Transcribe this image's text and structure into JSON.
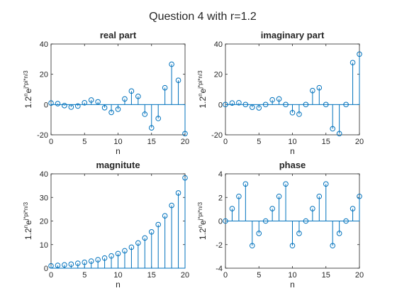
{
  "figure": {
    "suptitle": "Question 4 with r=1.2"
  },
  "colors": {
    "stem": "#0072BD",
    "axes": "#262626"
  },
  "chart_data": [
    {
      "type": "stem",
      "title": "real part",
      "xlabel": "n",
      "ylabel": {
        "base": "1.2",
        "sup1": "n",
        "mid": "e",
        "sup2": "j*pi*n/3"
      },
      "xlim": [
        0,
        20
      ],
      "ylim": [
        -20,
        40
      ],
      "xticks": [
        0,
        5,
        10,
        15,
        20
      ],
      "yticks": [
        -20,
        0,
        20,
        40
      ],
      "x": [
        0,
        1,
        2,
        3,
        4,
        5,
        6,
        7,
        8,
        9,
        10,
        11,
        12,
        13,
        14,
        15,
        16,
        17,
        18,
        19,
        20
      ],
      "values": [
        1,
        0.6,
        -0.7,
        -1.7,
        -1.0,
        1.2,
        3.0,
        1.8,
        -2.1,
        -5.2,
        -3.1,
        3.7,
        8.9,
        5.4,
        -6.4,
        -15.4,
        -9.2,
        11.1,
        26.6,
        16.0,
        -19.2
      ]
    },
    {
      "type": "stem",
      "title": "imaginary part",
      "xlabel": "n",
      "ylabel": {
        "base": "1.2",
        "sup1": "n",
        "mid": "e",
        "sup2": "j*pi*n/3"
      },
      "xlim": [
        0,
        20
      ],
      "ylim": [
        -20,
        40
      ],
      "xticks": [
        0,
        5,
        10,
        15,
        20
      ],
      "yticks": [
        -20,
        0,
        20,
        40
      ],
      "x": [
        0,
        1,
        2,
        3,
        4,
        5,
        6,
        7,
        8,
        9,
        10,
        11,
        12,
        13,
        14,
        15,
        16,
        17,
        18,
        19,
        20
      ],
      "values": [
        0,
        1.0,
        1.2,
        0,
        -1.8,
        -2.2,
        0,
        3.1,
        3.7,
        0,
        -5.4,
        -6.4,
        0,
        9.2,
        11.1,
        0,
        -16.0,
        -19.2,
        0,
        27.7,
        33.3
      ]
    },
    {
      "type": "stem",
      "title": "magnitute",
      "xlabel": "n",
      "ylabel": {
        "base": "1.2",
        "sup1": "n",
        "mid": "e",
        "sup2": "j*pi*n/3"
      },
      "xlim": [
        0,
        20
      ],
      "ylim": [
        0,
        40
      ],
      "xticks": [
        0,
        5,
        10,
        15,
        20
      ],
      "yticks": [
        0,
        10,
        20,
        30,
        40
      ],
      "x": [
        0,
        1,
        2,
        3,
        4,
        5,
        6,
        7,
        8,
        9,
        10,
        11,
        12,
        13,
        14,
        15,
        16,
        17,
        18,
        19,
        20
      ],
      "values": [
        1.0,
        1.2,
        1.4,
        1.7,
        2.1,
        2.5,
        3.0,
        3.6,
        4.3,
        5.2,
        6.2,
        7.4,
        8.9,
        10.7,
        12.8,
        15.4,
        18.5,
        22.2,
        26.6,
        31.9,
        38.3
      ]
    },
    {
      "type": "stem",
      "title": "phase",
      "xlabel": "n",
      "ylabel": {
        "base": "1.2",
        "sup1": "n",
        "mid": "e",
        "sup2": "j*pi*n/3"
      },
      "xlim": [
        0,
        20
      ],
      "ylim": [
        -4,
        4
      ],
      "xticks": [
        0,
        5,
        10,
        15,
        20
      ],
      "yticks": [
        -4,
        -2,
        0,
        2,
        4
      ],
      "x": [
        0,
        1,
        2,
        3,
        4,
        5,
        6,
        7,
        8,
        9,
        10,
        11,
        12,
        13,
        14,
        15,
        16,
        17,
        18,
        19,
        20
      ],
      "values": [
        0,
        1.05,
        2.09,
        3.14,
        -2.09,
        -1.05,
        0,
        1.05,
        2.09,
        3.14,
        -2.09,
        -1.05,
        0,
        1.05,
        2.09,
        3.14,
        -2.09,
        -1.05,
        0,
        1.05,
        2.09
      ]
    }
  ]
}
